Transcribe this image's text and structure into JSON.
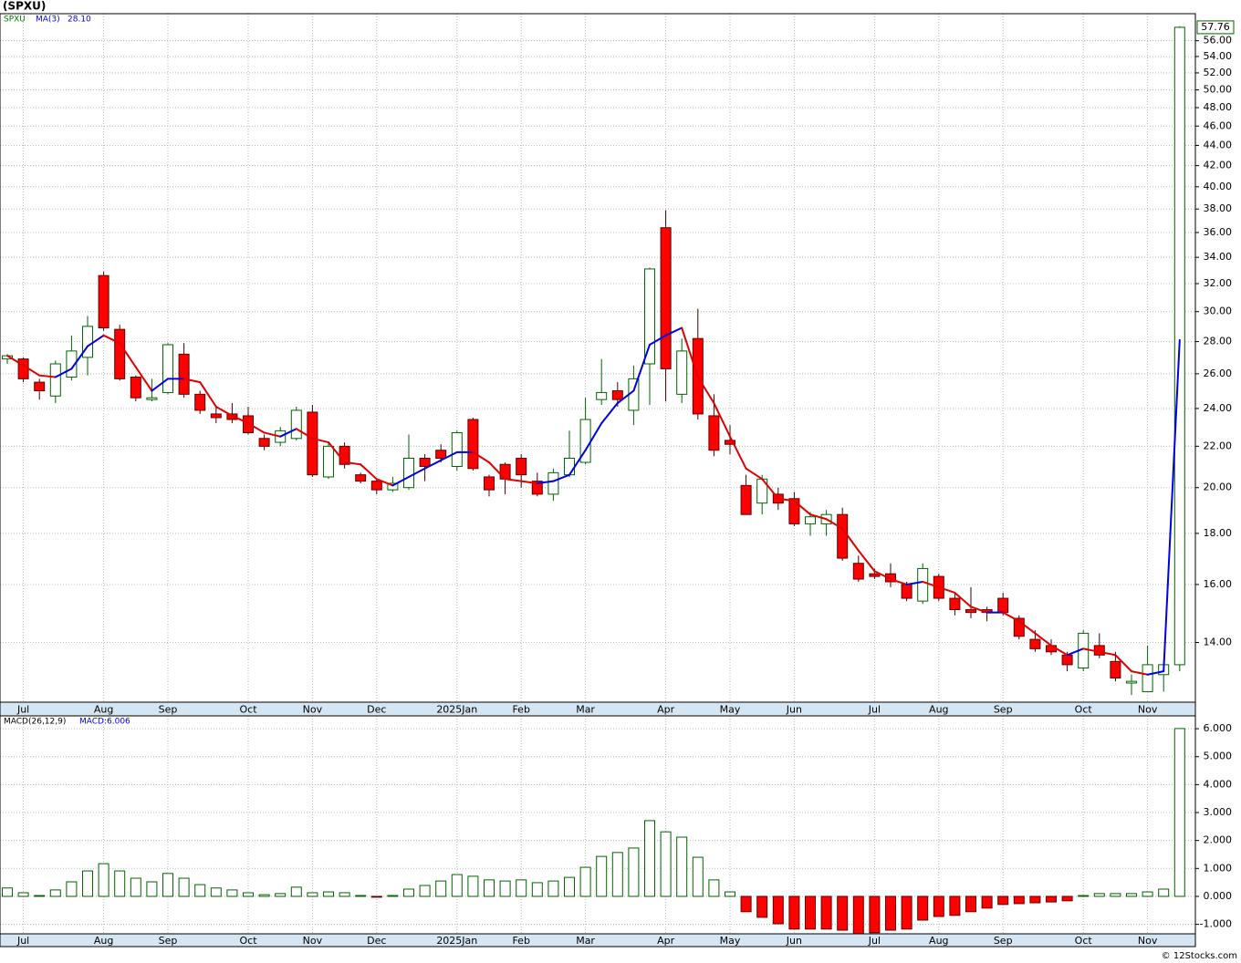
{
  "chart_data": [
    {
      "type": "candlestick",
      "title": "(SPXU)",
      "symbol": "SPXU",
      "log_scale": true,
      "grid": true,
      "up_color": "#006400",
      "down_color": "#ff0000",
      "categories": [
        null,
        "Jul",
        null,
        null,
        null,
        null,
        "Aug",
        null,
        null,
        null,
        "Sep",
        null,
        null,
        null,
        null,
        "Oct",
        null,
        null,
        null,
        "Nov",
        null,
        null,
        null,
        "Dec",
        null,
        null,
        null,
        null,
        "2025Jan",
        null,
        null,
        null,
        "Feb",
        null,
        null,
        null,
        "Mar",
        null,
        null,
        null,
        null,
        "Apr",
        null,
        null,
        null,
        "May",
        null,
        null,
        null,
        "Jun",
        null,
        null,
        null,
        null,
        "Jul",
        null,
        null,
        null,
        "Aug",
        null,
        null,
        null,
        "Sep",
        null,
        null,
        null,
        null,
        "Oct",
        null,
        null,
        null,
        "Nov",
        null,
        null
      ],
      "open": [
        26.9,
        26.9,
        25.5,
        24.7,
        25.8,
        27.0,
        32.6,
        28.8,
        25.8,
        24.5,
        24.9,
        27.2,
        24.8,
        23.7,
        23.7,
        23.6,
        22.4,
        22.2,
        22.4,
        23.8,
        20.5,
        22.0,
        20.6,
        20.3,
        19.9,
        20.0,
        21.4,
        21.8,
        21.0,
        23.4,
        20.5,
        21.1,
        21.4,
        20.3,
        19.7,
        20.6,
        21.2,
        24.5,
        25.0,
        23.9,
        26.6,
        36.4,
        24.8,
        28.2,
        23.6,
        22.3,
        20.1,
        19.3,
        19.7,
        19.5,
        18.4,
        18.4,
        18.8,
        16.8,
        16.4,
        16.4,
        16.0,
        15.4,
        16.3,
        15.5,
        15.1,
        15.1,
        15.5,
        14.8,
        14.1,
        13.9,
        13.6,
        13.2,
        13.9,
        13.4,
        12.75,
        12.5,
        13.0,
        13.3
      ],
      "high": [
        27.2,
        27.0,
        25.7,
        26.8,
        28.4,
        29.7,
        32.9,
        29.1,
        25.9,
        25.7,
        27.9,
        27.9,
        25.0,
        24.1,
        24.3,
        24.1,
        22.6,
        23.0,
        24.1,
        24.2,
        22.2,
        22.2,
        20.7,
        20.4,
        20.5,
        22.6,
        21.6,
        22.1,
        22.8,
        23.5,
        20.6,
        21.2,
        21.6,
        20.7,
        20.9,
        22.8,
        24.6,
        26.9,
        25.5,
        26.5,
        33.2,
        37.9,
        28.2,
        30.2,
        24.8,
        23.1,
        20.6,
        20.6,
        20.0,
        19.8,
        18.9,
        19.0,
        19.1,
        17.1,
        16.6,
        16.8,
        16.1,
        16.8,
        16.4,
        15.7,
        15.9,
        15.2,
        15.7,
        14.9,
        14.4,
        14.1,
        13.7,
        14.4,
        14.3,
        13.7,
        13.0,
        13.9,
        13.4,
        57.9
      ],
      "low": [
        26.6,
        25.5,
        24.5,
        24.3,
        25.6,
        25.9,
        28.7,
        25.6,
        24.4,
        24.4,
        24.8,
        24.6,
        23.7,
        23.2,
        23.2,
        22.6,
        21.8,
        22.0,
        22.3,
        20.5,
        20.4,
        20.9,
        20.2,
        19.7,
        19.8,
        19.9,
        20.3,
        21.2,
        20.8,
        20.8,
        19.6,
        19.7,
        20.0,
        19.6,
        19.4,
        20.5,
        21.1,
        24.2,
        24.1,
        23.1,
        24.2,
        24.4,
        24.3,
        23.4,
        21.5,
        21.6,
        18.8,
        18.8,
        19.0,
        18.3,
        17.9,
        17.9,
        16.9,
        16.1,
        16.2,
        15.9,
        15.4,
        15.3,
        15.4,
        14.9,
        14.8,
        14.7,
        14.9,
        14.1,
        13.7,
        13.6,
        13.1,
        13.1,
        13.5,
        12.8,
        12.4,
        12.5,
        12.5,
        13.1
      ],
      "close": [
        27.1,
        25.7,
        25.0,
        26.6,
        27.4,
        29.0,
        28.9,
        25.7,
        24.6,
        24.6,
        27.8,
        24.8,
        23.9,
        23.5,
        23.4,
        22.7,
        22.0,
        22.8,
        23.9,
        20.6,
        22.0,
        21.1,
        20.3,
        19.9,
        20.2,
        21.4,
        21.0,
        21.4,
        22.7,
        20.9,
        19.9,
        20.4,
        20.6,
        19.7,
        20.7,
        21.4,
        23.4,
        24.9,
        24.5,
        25.7,
        33.1,
        26.3,
        27.4,
        23.7,
        21.8,
        22.1,
        18.8,
        20.4,
        19.3,
        18.4,
        18.7,
        18.8,
        17.0,
        16.2,
        16.3,
        16.1,
        15.5,
        16.6,
        15.5,
        15.1,
        15.0,
        15.0,
        15.0,
        14.2,
        13.8,
        13.7,
        13.3,
        14.3,
        13.6,
        12.9,
        12.8,
        13.3,
        13.3,
        57.76
      ],
      "ma": {
        "name": "MA(3)",
        "last_label": "28.10",
        "up_color": "#0000e0",
        "down_color": "#e00000",
        "values": [
          27.1,
          26.5,
          25.9,
          25.8,
          26.3,
          27.7,
          28.4,
          27.9,
          26.4,
          25.0,
          25.7,
          25.7,
          25.5,
          24.1,
          23.6,
          23.2,
          22.7,
          22.5,
          22.9,
          22.4,
          22.2,
          21.2,
          21.1,
          20.4,
          20.1,
          20.5,
          20.9,
          21.3,
          21.7,
          21.7,
          21.2,
          20.4,
          20.3,
          20.2,
          20.3,
          20.6,
          21.8,
          23.2,
          24.3,
          25.0,
          27.8,
          28.4,
          28.9,
          25.8,
          24.3,
          22.5,
          20.9,
          20.4,
          19.5,
          19.4,
          18.8,
          18.6,
          18.2,
          17.3,
          16.5,
          16.2,
          16.0,
          16.1,
          15.9,
          15.7,
          15.2,
          15.0,
          15.0,
          14.7,
          14.3,
          13.9,
          13.6,
          13.8,
          13.7,
          13.6,
          13.1,
          13.0,
          13.1,
          28.1
        ]
      },
      "ylim": [
        12.2,
        59.6
      ],
      "yticks": [
        {
          "value": 14,
          "label": "14.00"
        },
        {
          "value": 16,
          "label": "16.00"
        },
        {
          "value": 18,
          "label": "18.00"
        },
        {
          "value": 20,
          "label": "20.00"
        },
        {
          "value": 22,
          "label": "22.00"
        },
        {
          "value": 24,
          "label": "24.00"
        },
        {
          "value": 26,
          "label": "26.00"
        },
        {
          "value": 28,
          "label": "28.00"
        },
        {
          "value": 30,
          "label": "30.00"
        },
        {
          "value": 32,
          "label": "32.00"
        },
        {
          "value": 34,
          "label": "34.00"
        },
        {
          "value": 36,
          "label": "36.00"
        },
        {
          "value": 38,
          "label": "38.00"
        },
        {
          "value": 40,
          "label": "40.00"
        },
        {
          "value": 42,
          "label": "42.00"
        },
        {
          "value": 44,
          "label": "44.00"
        },
        {
          "value": 46,
          "label": "46.00"
        },
        {
          "value": 48,
          "label": "48.00"
        },
        {
          "value": 50,
          "label": "50.00"
        },
        {
          "value": 52,
          "label": "52.00"
        },
        {
          "value": 54,
          "label": "54.00"
        },
        {
          "value": 56,
          "label": "56.00"
        }
      ]
    },
    {
      "type": "bar",
      "name": "MACD(26,12,9)",
      "value_label": "MACD:6.006",
      "grid": true,
      "up_color": "#006400",
      "down_color": "#ff0000",
      "values": [
        0.3,
        0.13,
        0.03,
        0.23,
        0.52,
        0.91,
        1.17,
        0.91,
        0.65,
        0.52,
        0.82,
        0.65,
        0.42,
        0.3,
        0.23,
        0.13,
        0.06,
        0.1,
        0.33,
        0.13,
        0.16,
        0.13,
        0.03,
        -0.03,
        0.03,
        0.26,
        0.39,
        0.55,
        0.78,
        0.72,
        0.59,
        0.55,
        0.59,
        0.49,
        0.55,
        0.68,
        1.04,
        1.43,
        1.57,
        1.73,
        2.71,
        2.31,
        2.12,
        1.4,
        0.59,
        0.16,
        -0.55,
        -0.75,
        -0.98,
        -1.17,
        -1.17,
        -1.17,
        -1.21,
        -1.33,
        -1.3,
        -1.21,
        -1.17,
        -0.85,
        -0.72,
        -0.68,
        -0.55,
        -0.42,
        -0.29,
        -0.26,
        -0.23,
        -0.2,
        -0.16,
        0.03,
        0.1,
        0.1,
        0.1,
        0.16,
        0.26,
        6.006
      ],
      "ylim": [
        -1.34,
        6.46
      ],
      "yticks": [
        {
          "value": -1,
          "label": "-1.000"
        },
        {
          "value": 0,
          "label": "0.000"
        },
        {
          "value": 1,
          "label": "1.000"
        },
        {
          "value": 2,
          "label": "2.000"
        },
        {
          "value": 3,
          "label": "3.000"
        },
        {
          "value": 4,
          "label": "4.000"
        },
        {
          "value": 5,
          "label": "5.000"
        },
        {
          "value": 6,
          "label": "6.000"
        }
      ]
    }
  ],
  "footer": "© 12Stocks.com"
}
